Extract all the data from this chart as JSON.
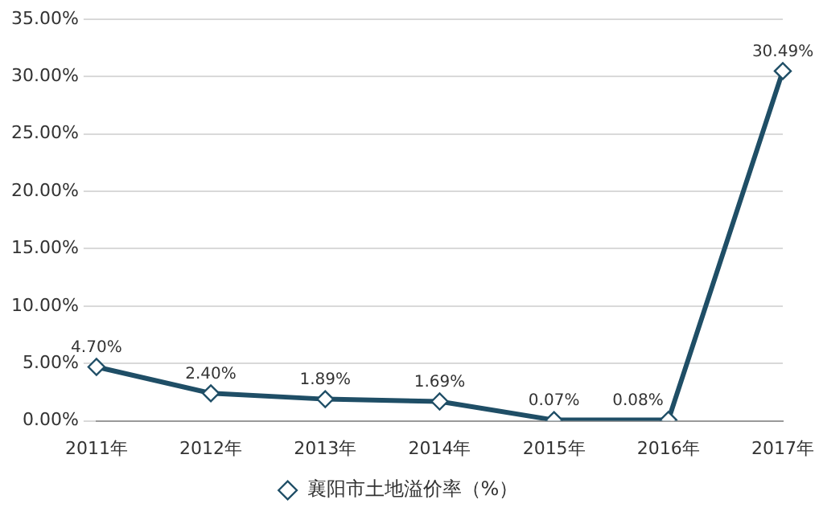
{
  "chart_data": {
    "type": "line",
    "categories": [
      "2011年",
      "2012年",
      "2013年",
      "2014年",
      "2015年",
      "2016年",
      "2017年"
    ],
    "series": [
      {
        "name": "襄阳市土地溢价率（%）",
        "color": "#1f4e66",
        "values": [
          4.7,
          2.4,
          1.89,
          1.69,
          0.07,
          0.08,
          30.49
        ],
        "value_labels": [
          "4.70%",
          "2.40%",
          "1.89%",
          "1.69%",
          "0.07%",
          "0.08%",
          "30.49%"
        ]
      }
    ],
    "ylim": [
      0,
      35
    ],
    "yticks": [
      {
        "value": 0,
        "label": "0.00%"
      },
      {
        "value": 5,
        "label": "5.00%"
      },
      {
        "value": 10,
        "label": "10.00%"
      },
      {
        "value": 15,
        "label": "15.00%"
      },
      {
        "value": 20,
        "label": "20.00%"
      },
      {
        "value": 25,
        "label": "25.00%"
      },
      {
        "value": 30,
        "label": "30.00%"
      },
      {
        "value": 35,
        "label": "35.00%"
      }
    ],
    "grid": "y",
    "legend": "bottom",
    "marker": "diamond",
    "line_style": "solid"
  }
}
